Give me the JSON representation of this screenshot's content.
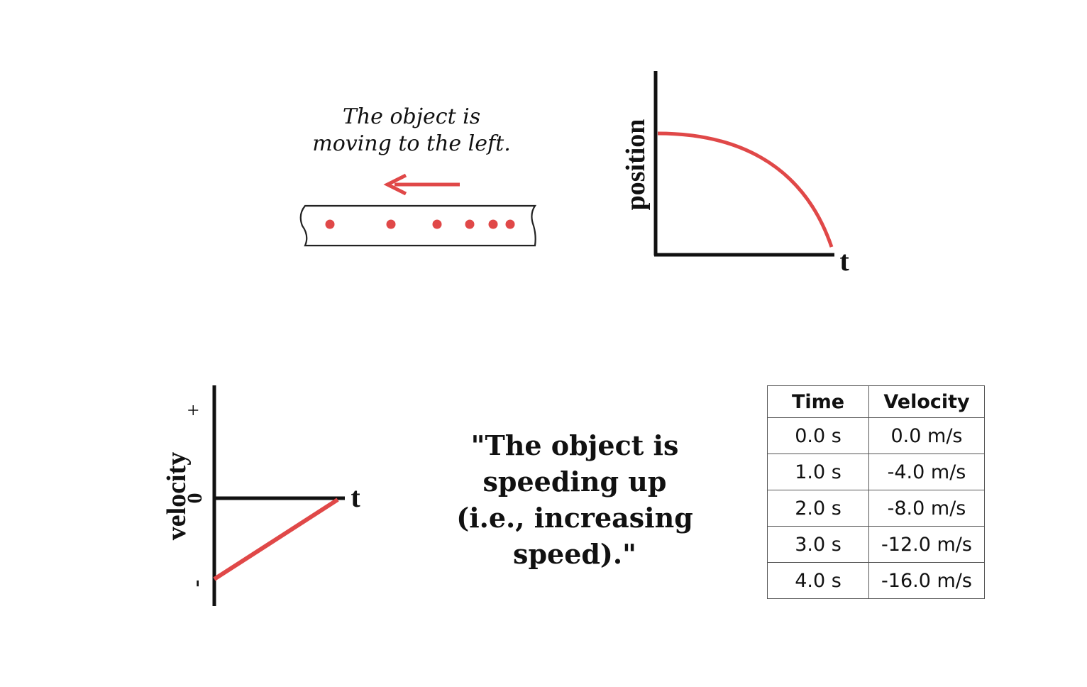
{
  "ticker_caption": [
    "The object is",
    "moving to the left."
  ],
  "position_graph": {
    "y_label": "position",
    "x_label": "t"
  },
  "velocity_graph": {
    "y_label": "velocity",
    "x_label": "t",
    "tick_plus": "+",
    "tick_zero": "0",
    "tick_minus": "-"
  },
  "statement": [
    "\"The object is",
    "speeding up",
    "(i.e., increasing",
    "speed).\""
  ],
  "table": {
    "headers": [
      "Time",
      "Velocity"
    ],
    "rows": [
      [
        "0.0 s",
        "0.0 m/s"
      ],
      [
        "1.0 s",
        "-4.0 m/s"
      ],
      [
        "2.0 s",
        "-8.0 m/s"
      ],
      [
        "3.0 s",
        "-12.0 m/s"
      ],
      [
        "4.0 s",
        "-16.0 m/s"
      ]
    ]
  },
  "colors": {
    "accent": "#e04848",
    "ink": "#111111"
  }
}
